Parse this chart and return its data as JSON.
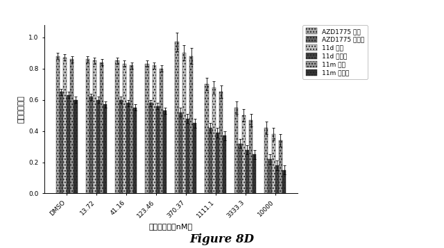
{
  "categories": [
    "DMSO",
    "13.72",
    "41.16",
    "123.46",
    "370.37",
    "1111.1",
    "3333.3",
    "10000"
  ],
  "xlabel": "阻害剤濃度（nM）",
  "ylabel": "正規化細胞数",
  "figure_label": "Figure 8D",
  "ylim": [
    0.0,
    1.08
  ],
  "yticks": [
    0.0,
    0.2,
    0.4,
    0.6,
    0.8,
    1.0
  ],
  "series": [
    {
      "label": "AZD1775 生存",
      "color": "#aaaaaa",
      "hatch": "....",
      "values": [
        0.88,
        0.86,
        0.85,
        0.83,
        0.97,
        0.7,
        0.55,
        0.42
      ]
    },
    {
      "label": "AZD1775 非生存",
      "color": "#666666",
      "hatch": "....",
      "values": [
        0.65,
        0.62,
        0.6,
        0.58,
        0.52,
        0.42,
        0.32,
        0.22
      ]
    },
    {
      "label": "11d 生存",
      "color": "#c8c8c8",
      "hatch": "....",
      "values": [
        0.87,
        0.85,
        0.83,
        0.82,
        0.9,
        0.68,
        0.5,
        0.38
      ]
    },
    {
      "label": "11d 非生存",
      "color": "#444444",
      "hatch": "....",
      "values": [
        0.63,
        0.6,
        0.58,
        0.56,
        0.48,
        0.39,
        0.28,
        0.18
      ]
    },
    {
      "label": "11m 生存",
      "color": "#999999",
      "hatch": "....",
      "values": [
        0.86,
        0.84,
        0.82,
        0.8,
        0.88,
        0.65,
        0.47,
        0.34
      ]
    },
    {
      "label": "11m 非生存",
      "color": "#333333",
      "hatch": "....",
      "values": [
        0.6,
        0.57,
        0.55,
        0.53,
        0.45,
        0.37,
        0.25,
        0.15
      ]
    }
  ],
  "bar_width": 0.12,
  "error_bars": [
    [
      0.02,
      0.02,
      0.02,
      0.02,
      0.06,
      0.04,
      0.04,
      0.04
    ],
    [
      0.02,
      0.02,
      0.02,
      0.02,
      0.03,
      0.03,
      0.03,
      0.03
    ],
    [
      0.02,
      0.02,
      0.02,
      0.02,
      0.05,
      0.04,
      0.04,
      0.04
    ],
    [
      0.02,
      0.02,
      0.02,
      0.02,
      0.03,
      0.03,
      0.03,
      0.03
    ],
    [
      0.02,
      0.02,
      0.02,
      0.02,
      0.05,
      0.04,
      0.04,
      0.04
    ],
    [
      0.02,
      0.02,
      0.02,
      0.02,
      0.03,
      0.03,
      0.03,
      0.03
    ]
  ],
  "bg_color": "#ffffff",
  "legend_fontsize": 6.5,
  "axis_fontsize": 8,
  "tick_fontsize": 6.5,
  "figure_label_fontsize": 12
}
